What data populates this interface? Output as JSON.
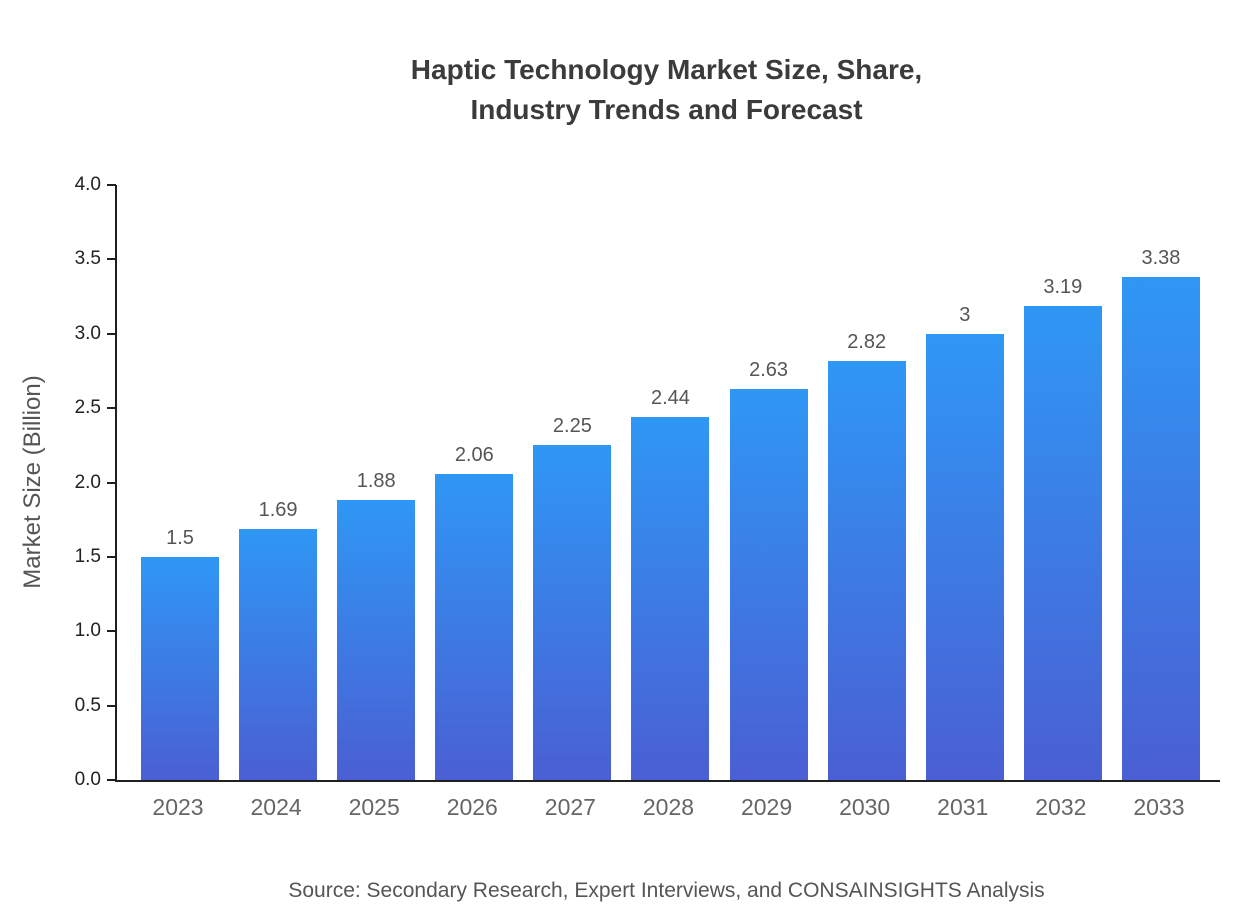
{
  "title": {
    "lines": [
      "Haptic Technology Market Size, Share,",
      "Industry Trends and Forecast"
    ]
  },
  "source": "Source: Secondary Research, Expert Interviews, and CONSAINSIGHTS Analysis",
  "chart_data": {
    "type": "bar",
    "title": "Haptic Technology Market Size, Share, Industry Trends and Forecast",
    "categories": [
      "2023",
      "2024",
      "2025",
      "2026",
      "2027",
      "2028",
      "2029",
      "2030",
      "2031",
      "2032",
      "2033"
    ],
    "values": [
      1.5,
      1.69,
      1.88,
      2.06,
      2.25,
      2.44,
      2.63,
      2.82,
      3,
      3.19,
      3.38
    ],
    "bar_labels": [
      "1.5",
      "1.69",
      "1.88",
      "2.06",
      "2.25",
      "2.44",
      "2.63",
      "2.82",
      "3",
      "3.19",
      "3.38"
    ],
    "xlabel": "",
    "ylabel": "Market Size (Billion)",
    "ylim": [
      0,
      4.0
    ],
    "yticks": [
      0.0,
      0.5,
      1.0,
      1.5,
      2.0,
      2.5,
      3.0,
      3.5,
      4.0
    ],
    "ytick_labels": [
      "0.0",
      "0.5",
      "1.0",
      "1.5",
      "2.0",
      "2.5",
      "3.0",
      "3.5",
      "4.0"
    ],
    "grid": false,
    "legend": false,
    "bar_gradient_top": "#2f97f5",
    "bar_gradient_bottom": "#4a5fd3",
    "axis_color": "#1f1f1f"
  }
}
